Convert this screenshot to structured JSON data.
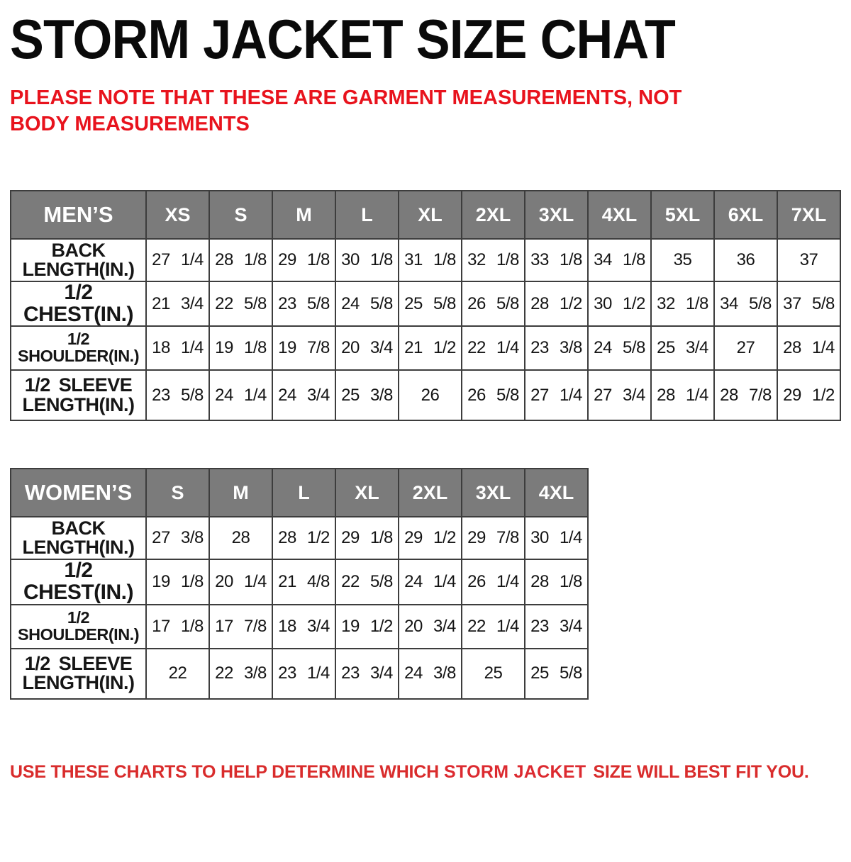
{
  "title": "STORM JACKET SIZE CHAT",
  "top_note": "PLEASE NOTE THAT THESE ARE GARMENT MEASUREMENTS, NOT BODY MEASUREMENTS",
  "bottom_note": {
    "prefix": "USE THESE CHARTS TO HELP DETERMINE WHICH",
    "product": "STORM JACKET",
    "suffix": "SIZE WILL BEST FIT YOU."
  },
  "colors": {
    "note_red": "#e8131d",
    "bottom_note_red": "#d92c2c",
    "header_gray": "#7b7b7b",
    "header_text": "#ffffff",
    "border": "#3d3d3d",
    "title_black": "#0a0a0a",
    "background": "#ffffff"
  },
  "chart_data": [
    {
      "type": "table",
      "name": "mens-size-chart",
      "columns": [
        "MEN’S",
        "XS",
        "S",
        "M",
        "L",
        "XL",
        "2XL",
        "3XL",
        "4XL",
        "5XL",
        "6XL",
        "7XL"
      ],
      "rows": [
        {
          "label": "BACK LENGTH(IN.)",
          "label_lines": [
            "BACK",
            "LENGTH(IN.)"
          ],
          "values": [
            "27 1/4",
            "28 1/8",
            "29 1/8",
            "30 1/8",
            "31 1/8",
            "32 1/8",
            "33 1/8",
            "34 1/8",
            "35",
            "36",
            "37"
          ]
        },
        {
          "label": "1/2 CHEST(IN.)",
          "label_lines": [
            "1/2 CHEST(IN.)"
          ],
          "values": [
            "21 3/4",
            "22 5/8",
            "23 5/8",
            "24 5/8",
            "25 5/8",
            "26 5/8",
            "28 1/2",
            "30 1/2",
            "32 1/8",
            "34 5/8",
            "37 5/8"
          ]
        },
        {
          "label": "1/2 SHOULDER(IN.)",
          "label_lines": [
            "1/2 SHOULDER(IN.)"
          ],
          "values": [
            "18 1/4",
            "19 1/8",
            "19 7/8",
            "20 3/4",
            "21 1/2",
            "22 1/4",
            "23 3/8",
            "24 5/8",
            "25 3/4",
            "27",
            "28 1/4"
          ]
        },
        {
          "label": "1/2 SLEEVE LENGTH(IN.)",
          "label_lines": [
            "1/2 SLEEVE",
            "LENGTH(IN.)"
          ],
          "values": [
            "23 5/8",
            "24 1/4",
            "24 3/4",
            "25 3/8",
            "26",
            "26 5/8",
            "27 1/4",
            "27 3/4",
            "28 1/4",
            "28 7/8",
            "29 1/2"
          ]
        }
      ]
    },
    {
      "type": "table",
      "name": "womens-size-chart",
      "columns": [
        "WOMEN’S",
        "S",
        "M",
        "L",
        "XL",
        "2XL",
        "3XL",
        "4XL"
      ],
      "rows": [
        {
          "label": "BACK LENGTH(IN.)",
          "label_lines": [
            "BACK",
            "LENGTH(IN.)"
          ],
          "values": [
            "27 3/8",
            "28",
            "28 1/2",
            "29 1/8",
            "29 1/2",
            "29 7/8",
            "30 1/4"
          ]
        },
        {
          "label": "1/2 CHEST(IN.)",
          "label_lines": [
            "1/2 CHEST(IN.)"
          ],
          "values": [
            "19 1/8",
            "20 1/4",
            "21 4/8",
            "22 5/8",
            "24 1/4",
            "26 1/4",
            "28 1/8"
          ]
        },
        {
          "label": "1/2 SHOULDER(IN.)",
          "label_lines": [
            "1/2 SHOULDER(IN.)"
          ],
          "values": [
            "17 1/8",
            "17 7/8",
            "18 3/4",
            "19 1/2",
            "20 3/4",
            "22 1/4",
            "23 3/4"
          ]
        },
        {
          "label": "1/2 SLEEVE LENGTH(IN.)",
          "label_lines": [
            "1/2 SLEEVE",
            "LENGTH(IN.)"
          ],
          "values": [
            "22",
            "22 3/8",
            "23 1/4",
            "23 3/4",
            "24 3/8",
            "25",
            "25 5/8"
          ]
        }
      ]
    }
  ]
}
